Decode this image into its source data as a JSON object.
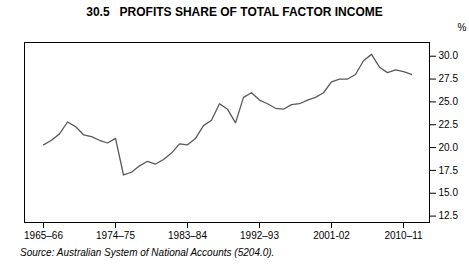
{
  "chart_data": {
    "type": "line",
    "title": "30.5   PROFITS SHARE OF TOTAL FACTOR INCOME",
    "ylabel": "%",
    "source": "Source: Australian System of National Accounts (5204.0).",
    "categories": [
      "1965–66",
      null,
      null,
      null,
      null,
      null,
      null,
      null,
      null,
      "1974–75",
      null,
      null,
      null,
      null,
      null,
      null,
      null,
      null,
      "1983–84",
      null,
      null,
      null,
      null,
      null,
      null,
      null,
      null,
      "1992–93",
      null,
      null,
      null,
      null,
      null,
      null,
      null,
      null,
      "2001-02",
      null,
      null,
      null,
      null,
      null,
      null,
      null,
      null,
      "2010–11",
      null
    ],
    "values": [
      20.3,
      20.8,
      21.5,
      22.8,
      22.3,
      21.4,
      21.2,
      20.8,
      20.5,
      21.0,
      17.0,
      17.3,
      18.0,
      18.5,
      18.2,
      18.7,
      19.4,
      20.4,
      20.3,
      21.0,
      22.4,
      23.0,
      24.8,
      24.2,
      22.7,
      25.5,
      26.0,
      25.2,
      24.8,
      24.3,
      24.2,
      24.7,
      24.8,
      25.2,
      25.5,
      26.0,
      27.2,
      27.5,
      27.5,
      28.0,
      29.5,
      30.2,
      28.8,
      28.2,
      28.5,
      28.3,
      28.0
    ],
    "color": "#595959",
    "ylim": [
      11.8,
      31.5
    ],
    "yticks": [
      12.5,
      {
        "value": 15.0,
        "label": "15.0"
      },
      17.5,
      {
        "value": 20.0,
        "label": "20.0"
      },
      22.5,
      {
        "value": 25.0,
        "label": "25.0"
      },
      27.5,
      {
        "value": 30.0,
        "label": "30.0"
      }
    ],
    "grid": false
  }
}
